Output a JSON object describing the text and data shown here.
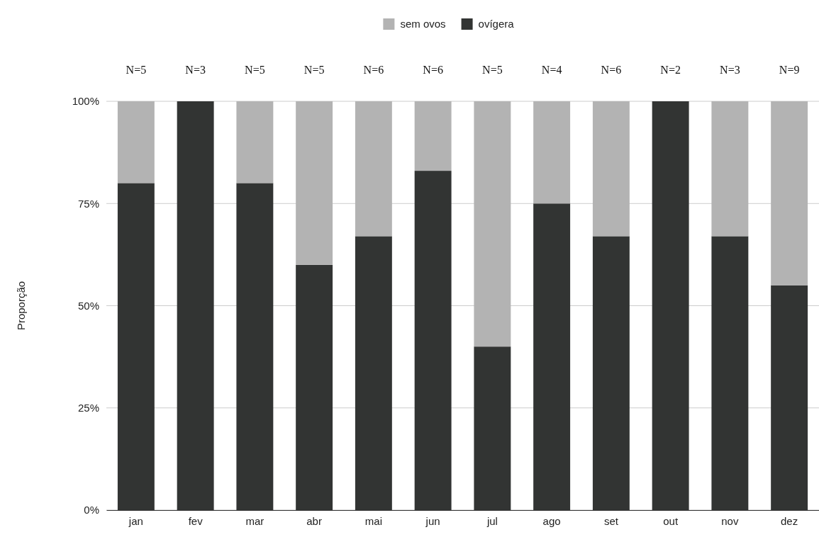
{
  "chart_data": {
    "type": "bar",
    "stacked": true,
    "ylabel": "Proporção",
    "categories": [
      "jan",
      "fev",
      "mar",
      "abr",
      "mai",
      "jun",
      "jul",
      "ago",
      "set",
      "out",
      "nov",
      "dez"
    ],
    "series": [
      {
        "name": "ovígera",
        "color": "#323433",
        "values": [
          80,
          100,
          80,
          60,
          67,
          83,
          40,
          75,
          67,
          100,
          67,
          55
        ]
      },
      {
        "name": "sem ovos",
        "color": "#b3b3b3",
        "values": [
          20,
          0,
          20,
          40,
          33,
          17,
          60,
          25,
          33,
          0,
          33,
          45
        ]
      }
    ],
    "ylim": [
      0,
      100
    ],
    "yticks": [
      {
        "value": 0,
        "label": "0%"
      },
      {
        "value": 25,
        "label": "25%"
      },
      {
        "value": 50,
        "label": "50%"
      },
      {
        "value": 75,
        "label": "75%"
      },
      {
        "value": 100,
        "label": "100%"
      }
    ],
    "grid": "y",
    "legend": "top",
    "annotations": [
      "N=5",
      "N=3",
      "N=5",
      "N=5",
      "N=6",
      "N=6",
      "N=5",
      "N=4",
      "N=6",
      "N=2",
      "N=3",
      "N=9"
    ]
  }
}
